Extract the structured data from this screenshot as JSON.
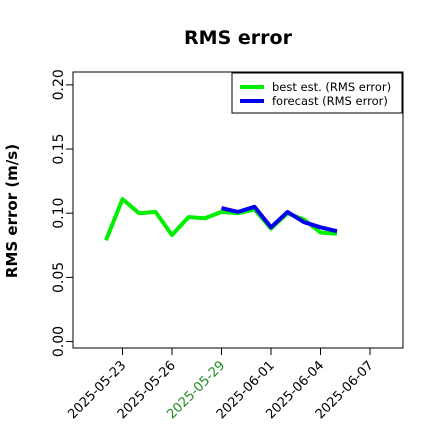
{
  "chart_data": {
    "type": "line",
    "title": "RMS error",
    "xlabel": "",
    "ylabel": "RMS error (m/s)",
    "xlim": [
      "2025-05-20",
      "2025-06-09"
    ],
    "ylim": [
      -0.005,
      0.21
    ],
    "yticks": [
      "0.00",
      "0.05",
      "0.10",
      "0.15",
      "0.20"
    ],
    "yticks_values": [
      0.0,
      0.05,
      0.1,
      0.15,
      0.2
    ],
    "xticks": [
      {
        "date": "2025-05-23",
        "label": "2025-05-23",
        "color": "#000000"
      },
      {
        "date": "2025-05-26",
        "label": "2025-05-26",
        "color": "#000000"
      },
      {
        "date": "2025-05-29",
        "label": "2025-05-29",
        "color": "#228B22"
      },
      {
        "date": "2025-06-01",
        "label": "2025-06-01",
        "color": "#000000"
      },
      {
        "date": "2025-06-04",
        "label": "2025-06-04",
        "color": "#000000"
      },
      {
        "date": "2025-06-07",
        "label": "2025-06-07",
        "color": "#000000"
      }
    ],
    "grid": false,
    "legend_position": "top-right",
    "series": [
      {
        "name": "best est. (RMS error)",
        "color": "#00ee00",
        "x": [
          "2025-05-22",
          "2025-05-23",
          "2025-05-24",
          "2025-05-25",
          "2025-05-26",
          "2025-05-27",
          "2025-05-28",
          "2025-05-29",
          "2025-05-30",
          "2025-05-31",
          "2025-06-01",
          "2025-06-02",
          "2025-06-03",
          "2025-06-04",
          "2025-06-05"
        ],
        "y": [
          0.079,
          0.111,
          0.1,
          0.101,
          0.083,
          0.097,
          0.096,
          0.101,
          0.1,
          0.103,
          0.088,
          0.1,
          0.095,
          0.085,
          0.084
        ]
      },
      {
        "name": "forecast (RMS error)",
        "color": "#0000ee",
        "x": [
          "2025-05-29",
          "2025-05-30",
          "2025-05-31",
          "2025-06-01",
          "2025-06-02",
          "2025-06-03",
          "2025-06-04",
          "2025-06-05"
        ],
        "y": [
          0.104,
          0.101,
          0.105,
          0.089,
          0.101,
          0.093,
          0.089,
          0.086
        ]
      }
    ]
  }
}
